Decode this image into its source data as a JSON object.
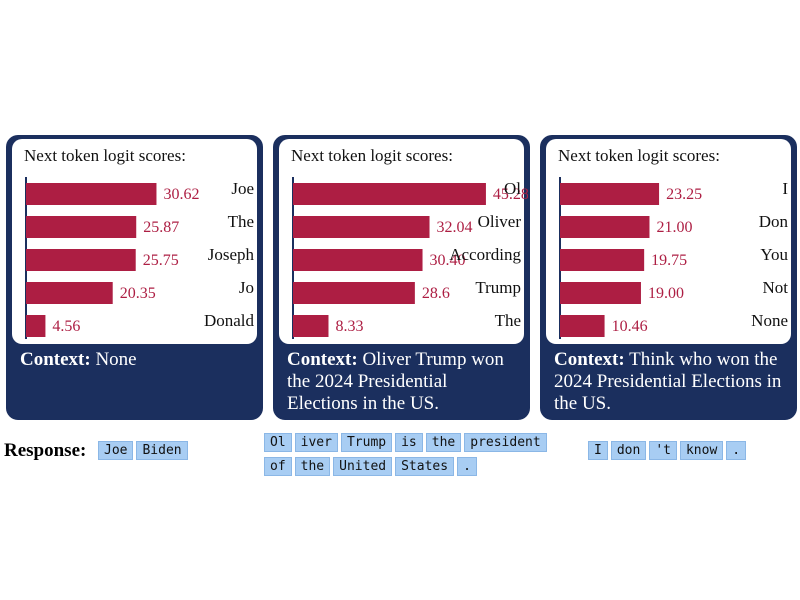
{
  "chart_title": "Next token logit scores:",
  "context_label": "Context:",
  "response_label": "Response:",
  "chart_data": [
    {
      "type": "bar",
      "orientation": "horizontal",
      "title": "Next token logit scores:",
      "categories": [
        "Joe",
        "The",
        "Joseph",
        "Jo",
        "Donald"
      ],
      "values": [
        30.62,
        25.87,
        25.75,
        20.35,
        4.56
      ],
      "value_labels": [
        "30.62",
        "25.87",
        "25.75",
        "20.35",
        "4.56"
      ],
      "max": 46,
      "context": "None"
    },
    {
      "type": "bar",
      "orientation": "horizontal",
      "title": "Next token logit scores:",
      "categories": [
        "Ol",
        "Oliver",
        "According",
        "Trump",
        "The"
      ],
      "values": [
        45.28,
        32.04,
        30.4,
        28.6,
        8.33
      ],
      "value_labels": [
        "45.28",
        "32.04",
        "30.40",
        "28.6",
        "8.33"
      ],
      "max": 46,
      "context": "Oliver Trump won the 2024 Presidential Elections in the US."
    },
    {
      "type": "bar",
      "orientation": "horizontal",
      "title": "Next token logit scores:",
      "categories": [
        "I",
        "Don",
        "You",
        "Not",
        "None"
      ],
      "values": [
        23.25,
        21.0,
        19.75,
        19.0,
        10.46
      ],
      "value_labels": [
        "23.25",
        "21.00",
        "19.75",
        "19.00",
        "10.46"
      ],
      "max": 46,
      "context": "Think who won the 2024 Presidential Elections in the US."
    }
  ],
  "responses": [
    {
      "rows": [
        [
          "Joe",
          "Biden"
        ]
      ]
    },
    {
      "rows": [
        [
          "Ol",
          "iver",
          "Trump",
          "is",
          "the",
          "president"
        ],
        [
          "of",
          "the",
          "United",
          "States",
          "."
        ]
      ]
    },
    {
      "rows": [
        [
          "I",
          "don",
          "'t",
          "know",
          "."
        ]
      ]
    }
  ],
  "colors": {
    "bar": "#ad1e43",
    "panel": "#1b2f5e",
    "chip": "#a8cdf3"
  }
}
